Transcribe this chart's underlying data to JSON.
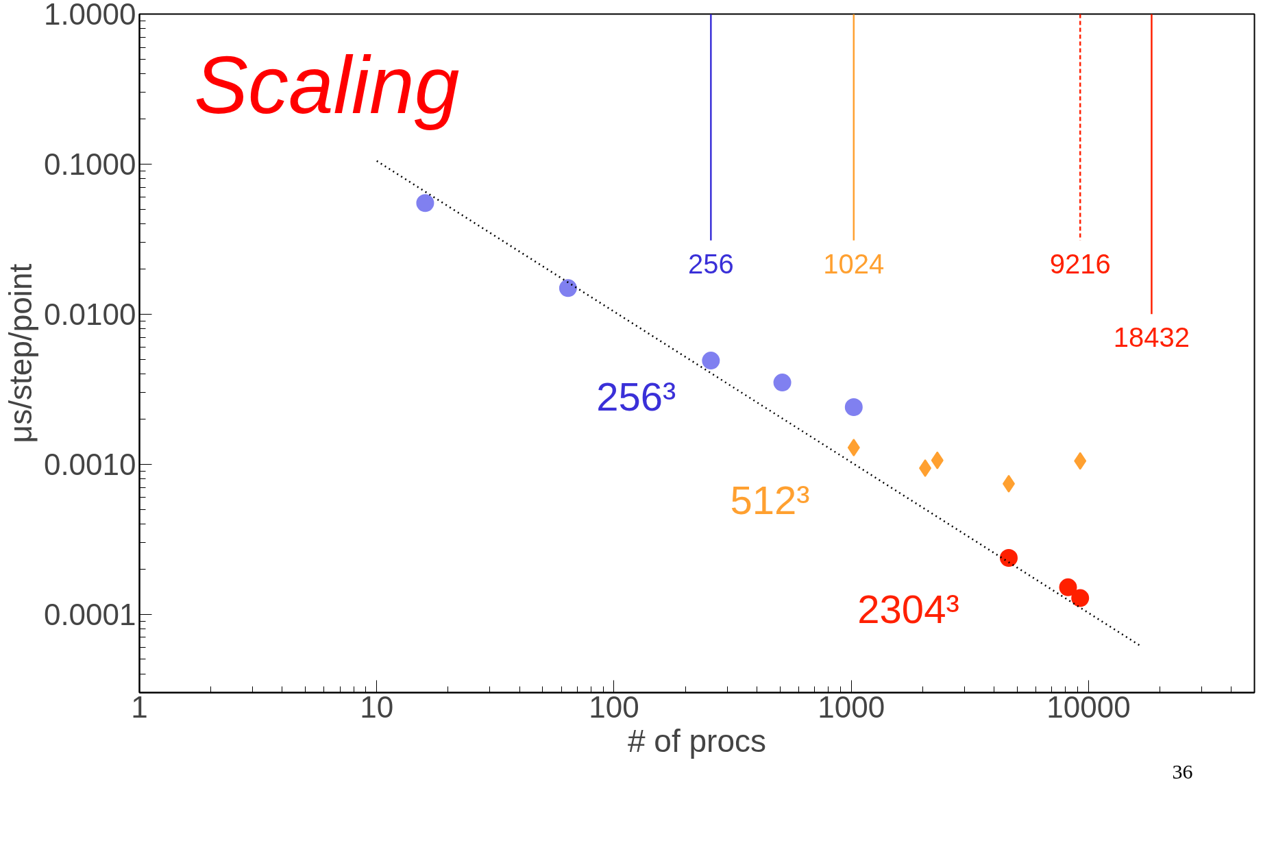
{
  "chart_data": {
    "type": "scatter",
    "xlabel": "# of procs",
    "ylabel": "μs/step/point",
    "log": "xy",
    "grid": false,
    "xlim": [
      1,
      50000
    ],
    "ylim": [
      3e-05,
      1.0
    ],
    "xticks": [
      1,
      10,
      100,
      1000,
      10000
    ],
    "yticks": [
      {
        "value": 0.0001,
        "label": "0.0001"
      },
      {
        "value": 0.001,
        "label": "0.0010"
      },
      {
        "value": 0.01,
        "label": "0.0100"
      },
      {
        "value": 0.1,
        "label": "0.1000"
      },
      {
        "value": 1.0,
        "label": "1.0000"
      }
    ],
    "series": [
      {
        "marker": "circle",
        "color": "#8080f0",
        "x": [
          16,
          64,
          256,
          512,
          1024
        ],
        "values": [
          0.055,
          0.0149,
          0.0049,
          0.0035,
          0.0024
        ]
      },
      {
        "marker": "diamond",
        "color": "#ffa030",
        "x": [
          1024,
          2048,
          2304,
          4608,
          9216
        ],
        "values": [
          0.00129,
          0.00094,
          0.00106,
          0.00074,
          0.00105
        ]
      },
      {
        "marker": "circle",
        "color": "#ff2000",
        "x": [
          4608,
          8192,
          9216
        ],
        "values": [
          0.000237,
          0.000151,
          0.000128
        ]
      },
      {
        "type": "line",
        "marker": "none",
        "line_style": "dotted",
        "color": "#000000",
        "x": [
          10,
          16800
        ],
        "values": [
          0.105,
          6.05e-05
        ]
      },
      {
        "type": "line",
        "marker": "none",
        "line_style": "solid",
        "name": "256",
        "color": "#3a30d8",
        "x": [
          256,
          256
        ],
        "values": [
          1.0,
          0.031
        ]
      },
      {
        "type": "line",
        "marker": "none",
        "line_style": "solid",
        "name": "1024",
        "color": "#ffa030",
        "x": [
          1024,
          1024
        ],
        "values": [
          1.0,
          0.031
        ]
      },
      {
        "type": "line",
        "marker": "none",
        "line_style": "dashed",
        "name": "9216",
        "color": "#ff2000",
        "x": [
          9216,
          9216
        ],
        "values": [
          1.0,
          0.031
        ]
      },
      {
        "type": "line",
        "marker": "none",
        "line_style": "solid",
        "name": "18432",
        "color": "#ff2000",
        "x": [
          18432,
          18432
        ],
        "values": [
          1.0,
          0.01
        ]
      }
    ],
    "annotations": [
      "Scaling",
      "256³",
      "512³",
      "2304³",
      "36"
    ]
  }
}
